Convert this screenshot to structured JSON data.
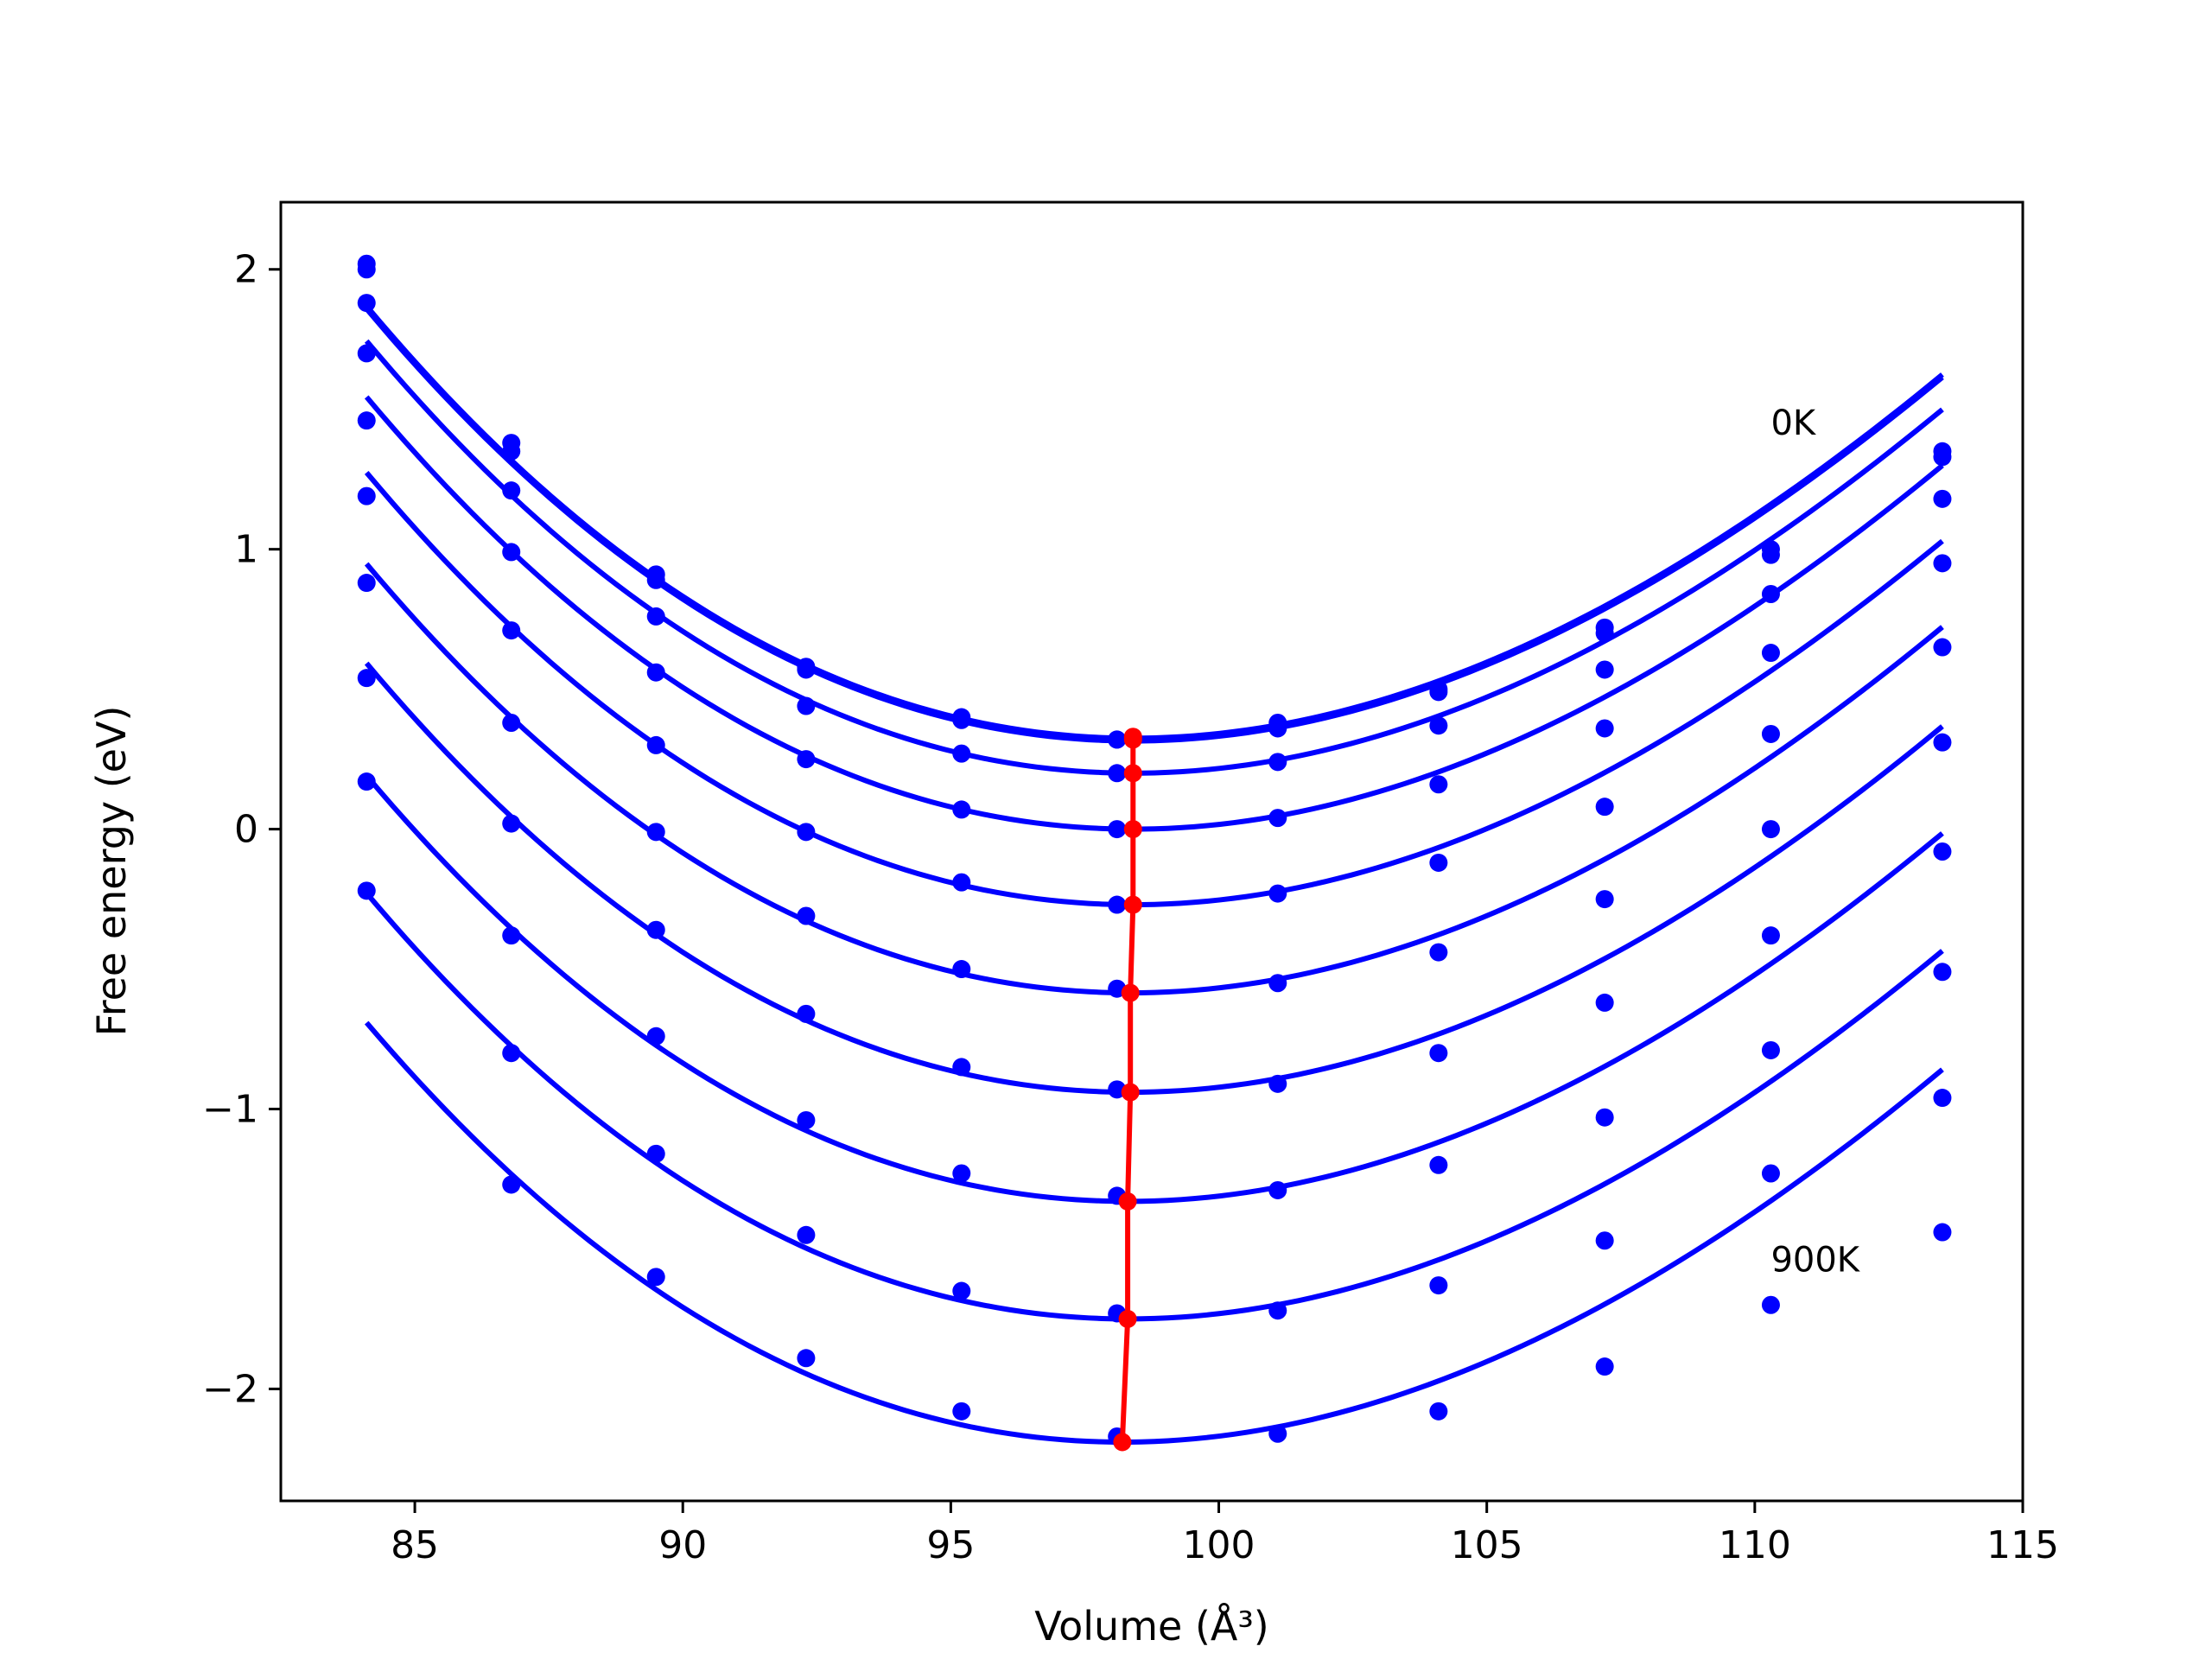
{
  "chart_data": {
    "type": "scatter",
    "xlabel": "Volume (Å³)",
    "ylabel": "Free energy (eV)",
    "xlim": [
      82.5,
      115
    ],
    "ylim": [
      -2.4,
      2.24
    ],
    "xticks": [
      85,
      90,
      95,
      100,
      105,
      110,
      115
    ],
    "xtick_labels": [
      "85",
      "90",
      "95",
      "100",
      "105",
      "110",
      "115"
    ],
    "yticks": [
      -2,
      -1,
      0,
      1,
      2
    ],
    "ytick_labels": [
      "−2",
      "−1",
      "0",
      "1",
      "2"
    ],
    "grid": false,
    "legend": "none",
    "colors": {
      "points": "#0000ff",
      "fit_curves": "#0000ff",
      "equilibrium_line": "#ff0000",
      "frame": "#000000"
    },
    "annotations": [
      {
        "text": "0K",
        "x": 110.3,
        "y": 1.41
      },
      {
        "text": "900K",
        "x": 110.3,
        "y": -1.58
      }
    ],
    "volumes": [
      84.1,
      86.8,
      89.5,
      92.3,
      95.2,
      98.1,
      101.1,
      104.1,
      107.2,
      110.3,
      113.5
    ],
    "series": [
      {
        "values": [
          2.02,
          1.38,
          0.91,
          0.58,
          0.4,
          0.32,
          0.38,
          0.5,
          0.72,
          1.0,
          1.35
        ],
        "fit": {
          "v0": 98.4,
          "e0": 0.325,
          "a": 0.00665,
          "b": -6.3e-05
        }
      },
      {
        "values": [
          2.0,
          1.35,
          0.89,
          0.57,
          0.39,
          0.32,
          0.36,
          0.49,
          0.7,
          0.98,
          1.33
        ],
        "fit": {
          "v0": 98.4,
          "e0": 0.315,
          "a": 0.00665,
          "b": -6.3e-05
        }
      },
      {
        "values": [
          1.88,
          1.21,
          0.76,
          0.44,
          0.27,
          0.2,
          0.24,
          0.37,
          0.57,
          0.84,
          1.18
        ],
        "fit": {
          "v0": 98.4,
          "e0": 0.2,
          "a": 0.00665,
          "b": -6.3e-05
        }
      },
      {
        "values": [
          1.7,
          0.99,
          0.56,
          0.25,
          0.07,
          0.0,
          0.04,
          0.16,
          0.36,
          0.63,
          0.95
        ],
        "fit": {
          "v0": 98.4,
          "e0": 0.0,
          "a": 0.00665,
          "b": -6.3e-05
        }
      },
      {
        "values": [
          1.46,
          0.71,
          0.3,
          -0.01,
          -0.19,
          -0.27,
          -0.23,
          -0.12,
          0.08,
          0.34,
          0.65
        ],
        "fit": {
          "v0": 98.4,
          "e0": -0.27,
          "a": 0.00665,
          "b": -6.3e-05
        }
      },
      {
        "values": [
          1.19,
          0.38,
          -0.01,
          -0.31,
          -0.5,
          -0.57,
          -0.55,
          -0.44,
          -0.25,
          0.0,
          0.31
        ],
        "fit": {
          "v0": 98.35,
          "e0": -0.585,
          "a": 0.00665,
          "b": -6.3e-05
        }
      },
      {
        "values": [
          0.88,
          0.02,
          -0.36,
          -0.66,
          -0.85,
          -0.93,
          -0.91,
          -0.8,
          -0.62,
          -0.38,
          -0.08
        ],
        "fit": {
          "v0": 98.35,
          "e0": -0.94,
          "a": 0.00665,
          "b": -6.3e-05
        }
      },
      {
        "values": [
          0.54,
          -0.38,
          -0.74,
          -1.04,
          -1.23,
          -1.31,
          -1.29,
          -1.2,
          -1.03,
          -0.79,
          -0.51
        ],
        "fit": {
          "v0": 98.3,
          "e0": -1.33,
          "a": 0.00665,
          "b": -6.3e-05
        }
      },
      {
        "values": [
          0.17,
          -0.8,
          -1.16,
          -1.45,
          -1.65,
          -1.73,
          -1.72,
          -1.63,
          -1.47,
          -1.23,
          -0.96
        ],
        "fit": {
          "v0": 98.3,
          "e0": -1.75,
          "a": 0.00665,
          "b": -6.3e-05
        }
      },
      {
        "values": [
          -0.22,
          -1.27,
          -1.6,
          -1.89,
          -2.08,
          -2.17,
          -2.16,
          -2.08,
          -1.92,
          -1.7,
          -1.44
        ],
        "fit": {
          "v0": 98.2,
          "e0": -2.19,
          "a": 0.00665,
          "b": -6.3e-05
        }
      }
    ],
    "equilibrium": {
      "x": [
        98.4,
        98.4,
        98.4,
        98.4,
        98.4,
        98.35,
        98.35,
        98.3,
        98.3,
        98.2
      ],
      "y": [
        0.33,
        0.32,
        0.2,
        0.0,
        -0.27,
        -0.585,
        -0.94,
        -1.33,
        -1.75,
        -2.19
      ]
    }
  }
}
